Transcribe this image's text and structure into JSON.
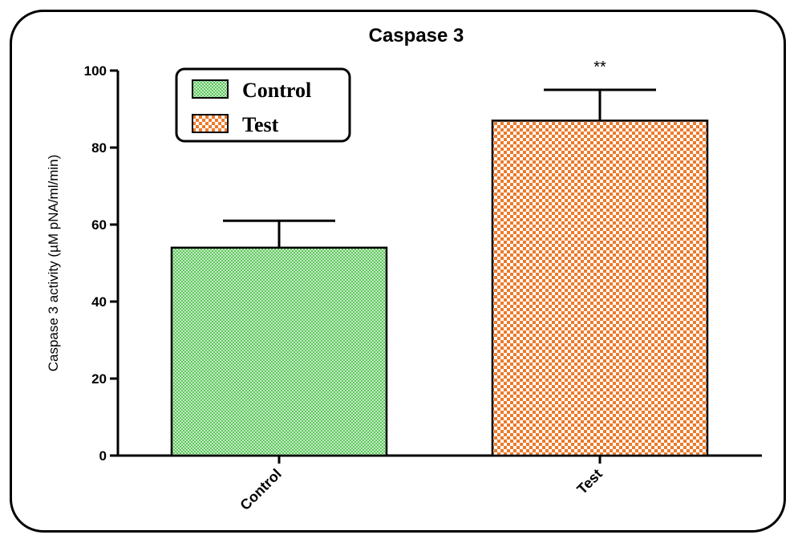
{
  "chart_data": {
    "type": "bar",
    "title": "Caspase 3",
    "ylabel": "Caspase 3 activity (µM pNA/ml/min)",
    "xlabel": "",
    "categories": [
      "Control",
      "Test"
    ],
    "values": [
      54,
      87
    ],
    "errors": [
      7,
      8
    ],
    "annotations": [
      "",
      "**"
    ],
    "ylim": [
      0,
      100
    ],
    "yticks": [
      0,
      20,
      40,
      60,
      80,
      100
    ],
    "legend": {
      "placement": "top-left",
      "entries": [
        "Control",
        "Test"
      ]
    },
    "colors": {
      "Control": "#7ed37e",
      "Test": "#f28e3f"
    },
    "grid": false
  }
}
